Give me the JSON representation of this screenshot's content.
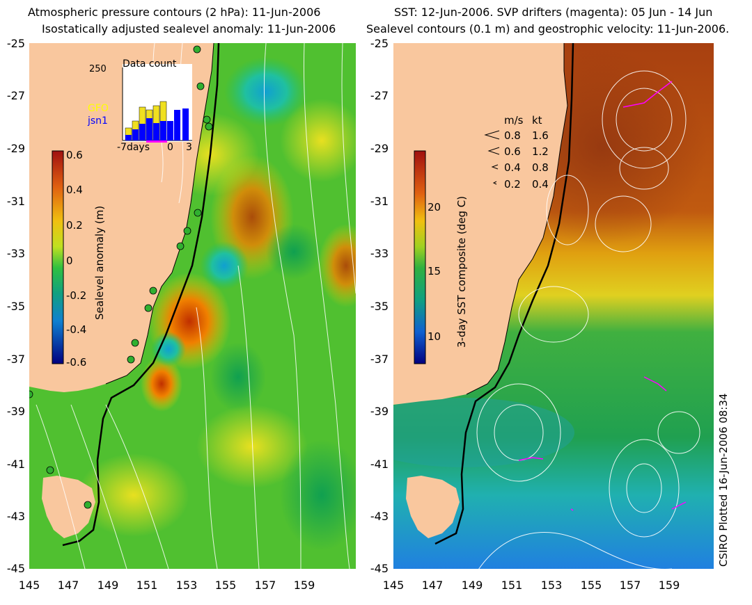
{
  "left_panel": {
    "title_line1": "Atmospheric pressure contours (2 hPa): 11-Jun-2006",
    "title_line2": "Isostatically adjusted sealevel anomaly: 11-Jun-2006",
    "colorbar": {
      "label": "Sealevel anomaly (m)",
      "ticks": [
        "0.6",
        "0.4",
        "0.2",
        "0",
        "-0.2",
        "-0.4",
        "-0.6"
      ],
      "range": [
        -0.6,
        0.6
      ]
    },
    "inset": {
      "title": "Data count",
      "ymax_label": "250",
      "x_labels": [
        "-7days",
        "0",
        "3"
      ],
      "series": [
        {
          "name": "GFO",
          "color": "#ffff00"
        },
        {
          "name": "jsn1",
          "color": "#0000ff"
        }
      ]
    }
  },
  "right_panel": {
    "title_line1": "SST: 12-Jun-2006. SVP drifters (magenta): 05 Jun - 14 Jun",
    "title_line2": "Sealevel contours (0.1 m) and geostrophic velocity: 11-Jun-2006.",
    "colorbar": {
      "label": "3-day SST composite (deg C)",
      "ticks": [
        "20",
        "15",
        "10"
      ],
      "range": [
        8,
        24
      ]
    },
    "velocity_legend": {
      "header_ms": "m/s",
      "header_kt": "kt",
      "rows": [
        {
          "ms": "0.8",
          "kt": "1.6"
        },
        {
          "ms": "0.6",
          "kt": "1.2"
        },
        {
          "ms": "0.4",
          "kt": "0.8"
        },
        {
          "ms": "0.2",
          "kt": "0.4"
        }
      ]
    }
  },
  "axes": {
    "y_ticks": [
      "-25",
      "-27",
      "-29",
      "-31",
      "-33",
      "-35",
      "-37",
      "-39",
      "-41",
      "-43",
      "-45"
    ],
    "x_ticks": [
      "145",
      "147",
      "149",
      "151",
      "153",
      "155",
      "157",
      "159"
    ]
  },
  "footer": {
    "plotted": "CSIRO Plotted 16-Jun-2006 08:34"
  },
  "colors": {
    "land": "#f9c79e",
    "coast": "#000000",
    "contour": "#ffffff",
    "drifter": "#ff00ff"
  }
}
